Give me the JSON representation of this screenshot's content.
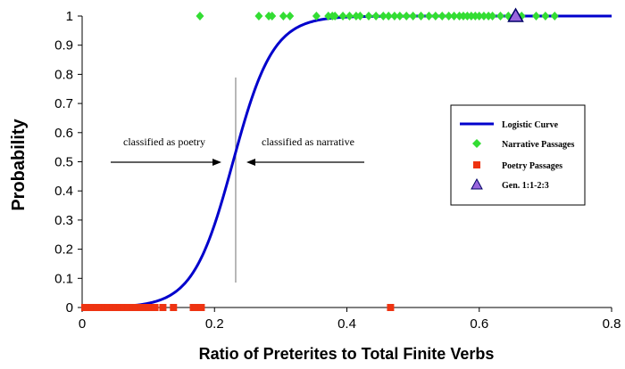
{
  "chart_data": {
    "type": "scatter",
    "title": "",
    "xlabel": "Ratio of Preterites to Total Finite Verbs",
    "ylabel": "Probability",
    "xlim": [
      0,
      0.8
    ],
    "ylim": [
      0,
      1
    ],
    "x_ticks": [
      "0",
      "0.2",
      "0.4",
      "0.6",
      "0.8"
    ],
    "y_ticks": [
      "0",
      "0.1",
      "0.2",
      "0.3",
      "0.4",
      "0.5",
      "0.6",
      "0.7",
      "0.8",
      "0.9",
      "1"
    ],
    "grid": false,
    "legend_position": "right",
    "logistic_curve": {
      "name": "Logistic Curve",
      "color": "#0000cc",
      "midpoint": 0.228,
      "steepness": 33
    },
    "threshold_x": 0.232,
    "annotations": {
      "left": "classified as poetry",
      "right": "classified as narrative"
    },
    "series": [
      {
        "name": "Narrative Passages",
        "color": "#33dd33",
        "y": 1,
        "x": [
          0.178,
          0.267,
          0.282,
          0.287,
          0.304,
          0.314,
          0.354,
          0.372,
          0.378,
          0.382,
          0.394,
          0.404,
          0.414,
          0.42,
          0.433,
          0.444,
          0.455,
          0.463,
          0.472,
          0.48,
          0.49,
          0.5,
          0.512,
          0.524,
          0.534,
          0.544,
          0.554,
          0.562,
          0.57,
          0.576,
          0.582,
          0.588,
          0.594,
          0.6,
          0.607,
          0.614,
          0.62,
          0.632,
          0.644,
          0.664,
          0.686,
          0.7,
          0.714
        ]
      },
      {
        "name": "Poetry Passages",
        "color": "#ee3311",
        "y": 0,
        "x": [
          0.004,
          0.01,
          0.016,
          0.022,
          0.028,
          0.034,
          0.04,
          0.046,
          0.052,
          0.058,
          0.064,
          0.07,
          0.076,
          0.082,
          0.088,
          0.094,
          0.102,
          0.11,
          0.122,
          0.138,
          0.168,
          0.172,
          0.176,
          0.18,
          0.466
        ]
      },
      {
        "name": "Gen. 1:1-2:3",
        "color": "#9966dd",
        "y": 1,
        "x": [
          0.655
        ]
      }
    ]
  }
}
